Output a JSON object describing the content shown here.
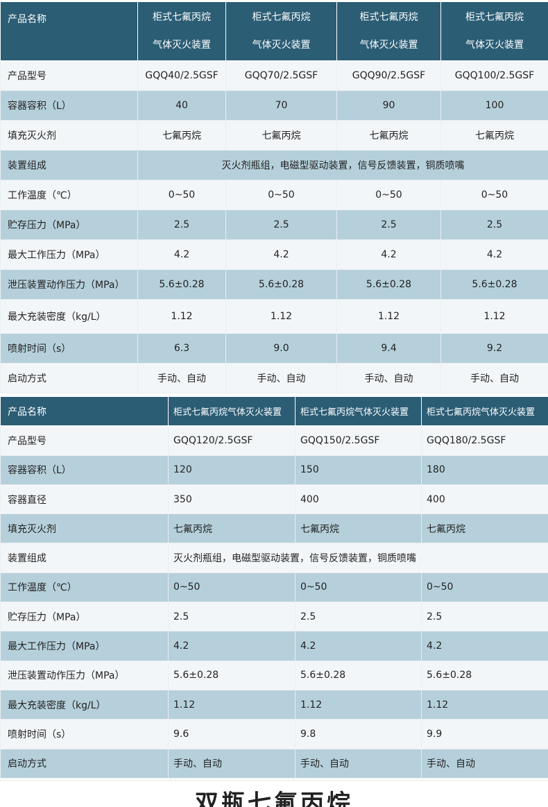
{
  "table1": {
    "header": {
      "label": "产品名称",
      "cols": [
        [
          "柜式七氟丙烷",
          "气体灭火装置"
        ],
        [
          "柜式七氟丙烷",
          "气体灭火装置"
        ],
        [
          "柜式七氟丙烷",
          "气体灭火装置"
        ],
        [
          "柜式七氟丙烷",
          "气体灭火装置"
        ]
      ]
    },
    "rows": [
      {
        "label": "产品型号",
        "values": [
          "GQQ40/2.5GSF",
          "GQQ70/2.5GSF",
          "GQQ90/2.5GSF",
          "GQQ100/2.5GSF"
        ]
      },
      {
        "label": "容器容积（L）",
        "values": [
          "40",
          "70",
          "90",
          "100"
        ]
      },
      {
        "label": "填充灭火剂",
        "values": [
          "七氟丙烷",
          "七氟丙烷",
          "七氟丙烷",
          "七氟丙烷"
        ]
      },
      {
        "label": "装置组成",
        "merged": "灭火剂瓶组，电磁型驱动装置，信号反馈装置，铜质喷嘴"
      },
      {
        "label": "工作温度（℃）",
        "values": [
          "0~50",
          "0~50",
          "0~50",
          "0~50"
        ]
      },
      {
        "label": "贮存压力（MPa）",
        "values": [
          "2.5",
          "2.5",
          "2.5",
          "2.5"
        ]
      },
      {
        "label": "最大工作压力（MPa）",
        "values": [
          "4.2",
          "4.2",
          "4.2",
          "4.2"
        ]
      },
      {
        "label": "泄压装置动作压力（MPa）",
        "values": [
          "5.6±0.28",
          "5.6±0.28",
          "5.6±0.28",
          "5.6±0.28"
        ]
      },
      {
        "label": "最大充装密度（kg/L）",
        "values": [
          "1.12",
          "1.12",
          "1.12",
          "1.12"
        ]
      },
      {
        "label": "喷射时间（s）",
        "values": [
          "6.3",
          "9.0",
          "9.4",
          "9.2"
        ]
      },
      {
        "label": "启动方式",
        "values": [
          "手动、自动",
          "手动、自动",
          "手动、自动",
          "手动、自动"
        ]
      }
    ]
  },
  "table2": {
    "header": {
      "label": "产品名称",
      "cols": [
        "柜式七氟丙烷气体灭火装置",
        "柜式七氟丙烷气体灭火装置",
        "柜式七氟丙烷气体灭火装置"
      ]
    },
    "rows": [
      {
        "label": "产品型号",
        "values": [
          "GQQ120/2.5GSF",
          "GQQ150/2.5GSF",
          "GQQ180/2.5GSF"
        ]
      },
      {
        "label": "容器容积（L）",
        "values": [
          "120",
          "150",
          "180"
        ]
      },
      {
        "label": "容器直径",
        "values": [
          "350",
          "400",
          "400"
        ]
      },
      {
        "label": "填充灭火剂",
        "values": [
          "七氟丙烷",
          "七氟丙烷",
          "七氟丙烷"
        ]
      },
      {
        "label": "装置组成",
        "merged": "灭火剂瓶组，电磁型驱动装置，信号反馈装置，铜质喷嘴"
      },
      {
        "label": "工作温度（℃）",
        "values": [
          "0~50",
          "0~50",
          "0~50"
        ]
      },
      {
        "label": "贮存压力（MPa）",
        "values": [
          "2.5",
          "2.5",
          "2.5"
        ]
      },
      {
        "label": "最大工作压力（MPa）",
        "values": [
          "4.2",
          "4.2",
          "4.2"
        ]
      },
      {
        "label": "泄压装置动作压力（MPa）",
        "values": [
          "5.6±0.28",
          "5.6±0.28",
          "5.6±0.28"
        ]
      },
      {
        "label": "最大充装密度（kg/L）",
        "values": [
          "1.12",
          "1.12",
          "1.12"
        ]
      },
      {
        "label": "喷射时间（s）",
        "values": [
          "9.6",
          "9.8",
          "9.9"
        ]
      },
      {
        "label": "启动方式",
        "values": [
          "手动、自动",
          "手动、自动",
          "手动、自动"
        ]
      }
    ]
  },
  "footer": {
    "title": "双瓶七氟丙烷"
  },
  "colors": {
    "header_bg": "#2b5d75",
    "row_light": "#f3f6f8",
    "row_blue": "#b5d0db"
  }
}
